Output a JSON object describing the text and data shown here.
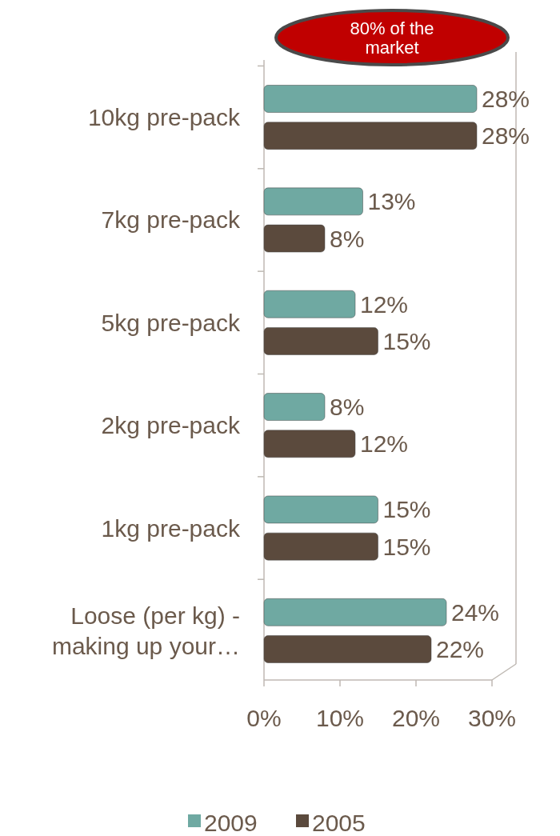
{
  "chart_data": {
    "type": "bar",
    "orientation": "horizontal",
    "categories": [
      "10kg pre-pack",
      "7kg pre-pack",
      "5kg pre-pack",
      "2kg pre-pack",
      "1kg pre-pack",
      "Loose (per kg) - making up your…"
    ],
    "series": [
      {
        "name": "2009",
        "color": "#6fa9a2",
        "values": [
          28,
          13,
          12,
          8,
          15,
          24
        ],
        "value_labels": [
          "28%",
          "13%",
          "12%",
          "8%",
          "15%",
          "24%"
        ]
      },
      {
        "name": "2005",
        "color": "#5b4a3d",
        "values": [
          28,
          8,
          15,
          12,
          15,
          22
        ],
        "value_labels": [
          "28%",
          "8%",
          "15%",
          "12%",
          "15%",
          "22%"
        ]
      }
    ],
    "xlim": [
      0,
      30
    ],
    "xticks": [
      {
        "value": 0,
        "label": "0%"
      },
      {
        "value": 10,
        "label": "10%"
      },
      {
        "value": 20,
        "label": "20%"
      },
      {
        "value": 30,
        "label": "30%"
      }
    ],
    "grid": false,
    "legend": "bottom",
    "annotations": [
      "80% of the market"
    ]
  }
}
